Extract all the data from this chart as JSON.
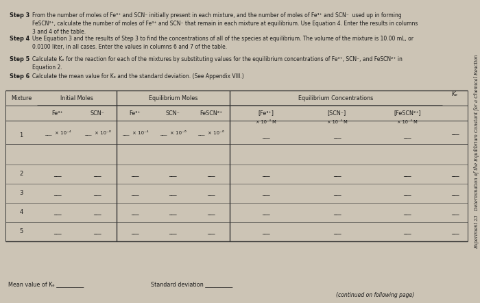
{
  "bg_color": "#ccc4b5",
  "text_color": "#1a1a1a",
  "title_side": "Experiment 23   Determination of the Equilibrium Constant for a Chemical Reaction",
  "steps": [
    {
      "label": "Step 3",
      "text": "From the number of moles of Fe³⁺ and SCN⁻ initially present in each mixture, and the number of moles of Fe³⁺ and SCN⁻  used up in forming\nFeSCN²⁺, calculate the number of moles of Fe³⁺ and SCN⁻ that remain in each mixture at equilibrium. Use Equation 4. Enter the results in columns\n3 and 4 of the table."
    },
    {
      "label": "Step 4",
      "text": "Use Equation 3 and the results of Step 3 to find the concentrations of all of the species at equilibrium. The volume of the mixture is 10.00 mL, or\n0.0100 liter, in all cases. Enter the values in columns 6 and 7 of the table."
    },
    {
      "label": "Step 5",
      "text": "Calculate Kₑ for the reaction for each of the mixtures by substituting values for the equilibrium concentrations of Fe³⁺, SCN⁻, and FeSCN²⁺ in\nEquation 2."
    },
    {
      "label": "Step 6",
      "text": "Calculate the mean value for Kₑ and the standard deviation. (See Appendix VIII.)"
    }
  ],
  "col_kc": "Kₑ",
  "footer_left": "Mean value of Kₑ",
  "footer_mid": "Standard deviation",
  "footer_right": "(continued on following page)"
}
